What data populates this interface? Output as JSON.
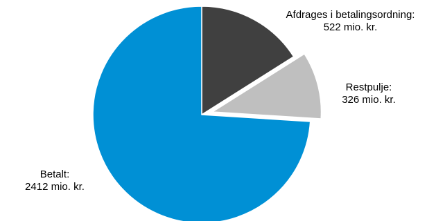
{
  "chart_data": {
    "type": "pie",
    "title": "",
    "start_angle_deg": 0,
    "direction": "clockwise",
    "slices": [
      {
        "label": "Afdrages i betalingsordning:",
        "value_text": "522 mio. kr.",
        "value": 522,
        "color": "#404040",
        "exploded": false
      },
      {
        "label": "Restpulje:",
        "value_text": "326 mio. kr.",
        "value": 326,
        "color": "#bfbfbf",
        "exploded": true
      },
      {
        "label": "Betalt:",
        "value_text": "2412 mio. kr.",
        "value": 2412,
        "color": "#0090d5",
        "exploded": false
      }
    ],
    "unit": "mio. kr."
  }
}
